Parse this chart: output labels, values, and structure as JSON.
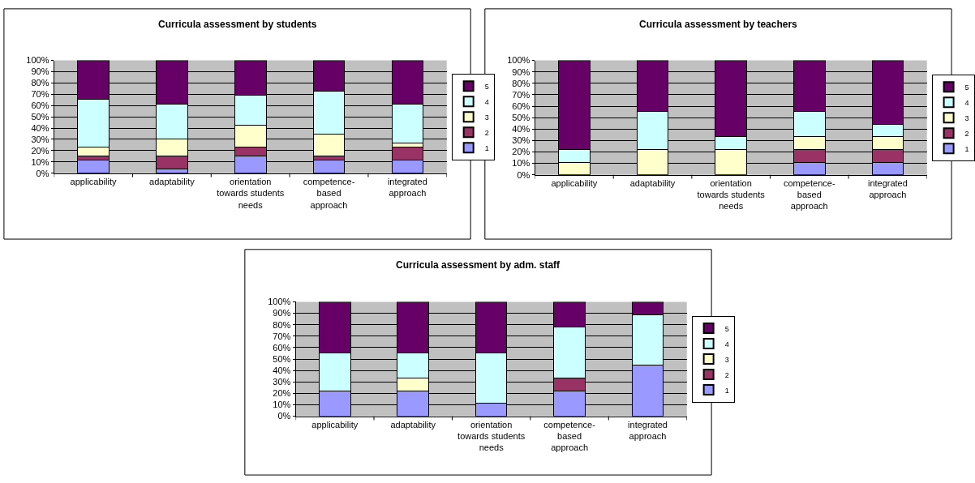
{
  "chart_data": [
    {
      "type": "bar",
      "title": "Curricula assessment by students",
      "stacked": true,
      "categories": [
        "applicability",
        "adaptability",
        "orientation towards students needs",
        "competence-based approach",
        "integrated approach"
      ],
      "ylim": [
        0,
        100
      ],
      "yticks": [
        {
          "value": 0,
          "label": "0%"
        },
        {
          "value": 10,
          "label": "10%"
        },
        {
          "value": 20,
          "label": "20%"
        },
        {
          "value": 30,
          "label": "30%"
        },
        {
          "value": 40,
          "label": "40%"
        },
        {
          "value": 50,
          "label": "50%"
        },
        {
          "value": 60,
          "label": "60%"
        },
        {
          "value": 70,
          "label": "70%"
        },
        {
          "value": 80,
          "label": "80%"
        },
        {
          "value": 90,
          "label": "90%"
        },
        {
          "value": 100,
          "label": "100%"
        }
      ],
      "grid": "y",
      "legend": "right",
      "series": [
        {
          "name": "1",
          "color": "#9999ff",
          "values": [
            11.5,
            3.8,
            15.4,
            11.5,
            11.5
          ]
        },
        {
          "name": "2",
          "color": "#993366",
          "values": [
            3.8,
            11.5,
            7.7,
            3.8,
            11.5
          ]
        },
        {
          "name": "3",
          "color": "#ffffcc",
          "values": [
            7.7,
            15.4,
            19.2,
            19.2,
            3.8
          ]
        },
        {
          "name": "4",
          "color": "#ccffff",
          "values": [
            42.3,
            30.8,
            26.9,
            38.5,
            34.6
          ]
        },
        {
          "name": "5",
          "color": "#660066",
          "values": [
            34.6,
            38.5,
            30.8,
            26.9,
            38.5
          ]
        }
      ]
    },
    {
      "type": "bar",
      "title": "Curricula assessment by teachers",
      "stacked": true,
      "categories": [
        "applicability",
        "adaptability",
        "orientation towards students needs",
        "competence-based approach",
        "integrated approach"
      ],
      "ylim": [
        0,
        100
      ],
      "yticks": [
        {
          "value": 0,
          "label": "0%"
        },
        {
          "value": 10,
          "label": "10%"
        },
        {
          "value": 20,
          "label": "20%"
        },
        {
          "value": 30,
          "label": "30%"
        },
        {
          "value": 40,
          "label": "40%"
        },
        {
          "value": 50,
          "label": "50%"
        },
        {
          "value": 60,
          "label": "60%"
        },
        {
          "value": 70,
          "label": "70%"
        },
        {
          "value": 80,
          "label": "80%"
        },
        {
          "value": 90,
          "label": "90%"
        },
        {
          "value": 100,
          "label": "100%"
        }
      ],
      "grid": "y",
      "legend": "right",
      "series": [
        {
          "name": "1",
          "color": "#9999ff",
          "values": [
            0,
            0,
            0,
            11.1,
            11.1
          ]
        },
        {
          "name": "2",
          "color": "#993366",
          "values": [
            0,
            0,
            0,
            11.1,
            11.1
          ]
        },
        {
          "name": "3",
          "color": "#ffffcc",
          "values": [
            11.1,
            22.2,
            22.2,
            11.1,
            11.1
          ]
        },
        {
          "name": "4",
          "color": "#ccffff",
          "values": [
            11.1,
            33.3,
            11.1,
            22.2,
            11.1
          ]
        },
        {
          "name": "5",
          "color": "#660066",
          "values": [
            77.8,
            44.4,
            66.7,
            44.4,
            55.6
          ]
        }
      ]
    },
    {
      "type": "bar",
      "title": "Curricula assessment by adm. staff",
      "stacked": true,
      "categories": [
        "applicability",
        "adaptability",
        "orientation towards students needs",
        "competence-based approach",
        "integrated approach"
      ],
      "ylim": [
        0,
        100
      ],
      "yticks": [
        {
          "value": 0,
          "label": "0%"
        },
        {
          "value": 10,
          "label": "10%"
        },
        {
          "value": 20,
          "label": "20%"
        },
        {
          "value": 30,
          "label": "30%"
        },
        {
          "value": 40,
          "label": "40%"
        },
        {
          "value": 50,
          "label": "50%"
        },
        {
          "value": 60,
          "label": "60%"
        },
        {
          "value": 70,
          "label": "70%"
        },
        {
          "value": 80,
          "label": "80%"
        },
        {
          "value": 90,
          "label": "90%"
        },
        {
          "value": 100,
          "label": "100%"
        }
      ],
      "grid": "y",
      "legend": "right",
      "series": [
        {
          "name": "1",
          "color": "#9999ff",
          "values": [
            22.2,
            22.2,
            11.1,
            22.2,
            44.4
          ]
        },
        {
          "name": "2",
          "color": "#993366",
          "values": [
            0,
            0,
            0,
            11.1,
            0
          ]
        },
        {
          "name": "3",
          "color": "#ffffcc",
          "values": [
            0,
            11.1,
            0,
            0,
            0
          ]
        },
        {
          "name": "4",
          "color": "#ccffff",
          "values": [
            33.3,
            22.2,
            44.4,
            44.4,
            44.4
          ]
        },
        {
          "name": "5",
          "color": "#660066",
          "values": [
            44.4,
            44.4,
            44.4,
            22.2,
            11.1
          ]
        }
      ]
    }
  ]
}
